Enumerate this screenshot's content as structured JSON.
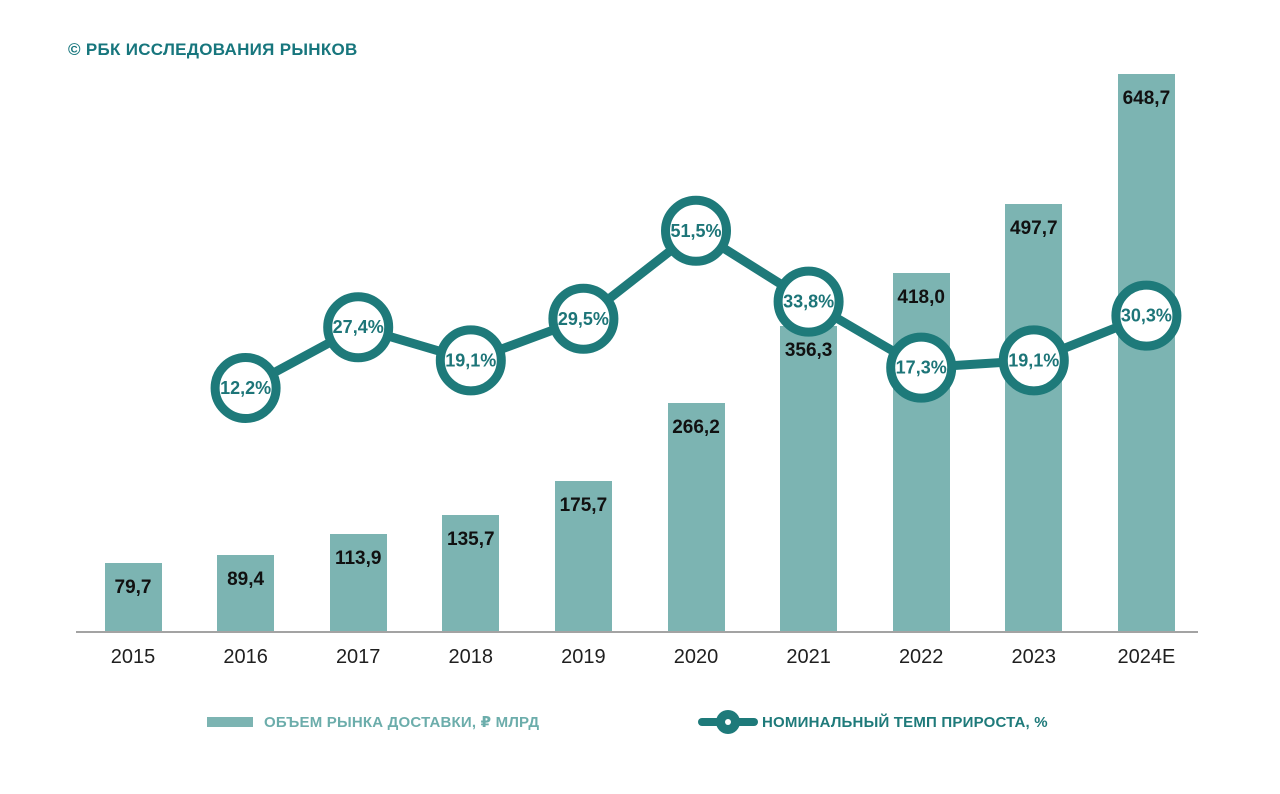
{
  "source_label": "© РБК ИССЛЕДОВАНИЯ РЫНКОВ",
  "colors": {
    "bar_fill": "#7cb4b2",
    "line_teal": "#1e7a7a",
    "title_teal": "#17767d",
    "axis_gray": "#a3a3a3",
    "bar_value_text": "#111111",
    "year_text": "#1f1f1f",
    "percent_text": "#1d7578",
    "legend_bar_text": "#6cadab",
    "legend_line_text": "#1e7a7a"
  },
  "legend": {
    "items": [
      {
        "label": "ОБЪЕМ РЫНКА ДОСТАВКИ, ₽ МЛРД",
        "marker": "bar-swatch",
        "color": "#7cb4b2"
      },
      {
        "label": "НОМИНАЛЬНЫЙ ТЕМП ПРИРОСТА, %",
        "marker": "line-dot",
        "color": "#1e7a7a"
      }
    ]
  },
  "chart_data": {
    "type": "bar",
    "subtype": "combo-bar-line",
    "title": "© РБК ИССЛЕДОВАНИЯ РЫНКОВ",
    "xlabel": "",
    "ylabel": "",
    "grid": false,
    "y_axis_labels_visible": false,
    "legend_position": "bottom",
    "categories": [
      "2015",
      "2016",
      "2017",
      "2018",
      "2019",
      "2020",
      "2021",
      "2022",
      "2023",
      "2024E"
    ],
    "series": [
      {
        "name": "ОБЪЕМ РЫНКА ДОСТАВКИ, ₽ МЛРД",
        "type": "bar",
        "values": [
          79.7,
          89.4,
          113.9,
          135.7,
          175.7,
          266.2,
          356.3,
          418.0,
          497.7,
          648.7
        ],
        "labels": [
          "79,7",
          "89,4",
          "113,9",
          "135,7",
          "175,7",
          "266,2",
          "356,3",
          "418,0",
          "497,7",
          "648,7"
        ]
      },
      {
        "name": "НОМИНАЛЬНЫЙ ТЕМП ПРИРОСТА, %",
        "type": "line",
        "values": [
          null,
          12.2,
          27.4,
          19.1,
          29.5,
          51.5,
          33.8,
          17.3,
          19.1,
          30.3
        ],
        "labels": [
          null,
          "12,2%",
          "27,4%",
          "19,1%",
          "29,5%",
          "51,5%",
          "33,8%",
          "17,3%",
          "19,1%",
          "30,3%"
        ]
      }
    ]
  }
}
